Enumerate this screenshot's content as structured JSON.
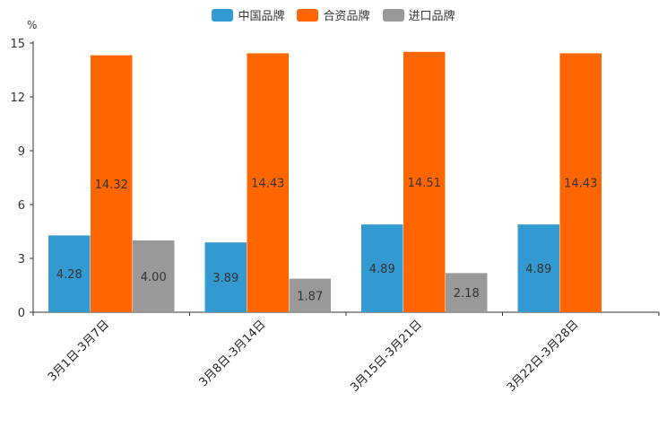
{
  "chart_data": {
    "type": "bar",
    "unit": "%",
    "categories": [
      "3月1日-3月7日",
      "3月8日-3月14日",
      "3月15日-3月21日",
      "3月22日-3月28日"
    ],
    "series": [
      {
        "name": "中国品牌",
        "color": "#3399d1",
        "values": [
          4.28,
          3.89,
          4.89,
          4.89
        ],
        "labels": [
          "4.28",
          "3.89",
          "4.89",
          "4.89"
        ]
      },
      {
        "name": "合资品牌",
        "color": "#ff6600",
        "values": [
          14.32,
          14.43,
          14.51,
          14.43
        ],
        "labels": [
          "14.32",
          "14.43",
          "14.51",
          "14.43"
        ]
      },
      {
        "name": "进口品牌",
        "color": "#999999",
        "values": [
          4.0,
          1.87,
          2.18,
          null
        ],
        "labels": [
          "4.00",
          "1.87",
          "2.18",
          ""
        ]
      }
    ],
    "yticks": [
      0,
      3,
      6,
      9,
      12,
      15
    ],
    "ytick_labels": [
      "0",
      "3",
      "6",
      "9",
      "12",
      "15"
    ],
    "ylim": [
      0,
      15
    ],
    "legend_position": "top-center"
  }
}
